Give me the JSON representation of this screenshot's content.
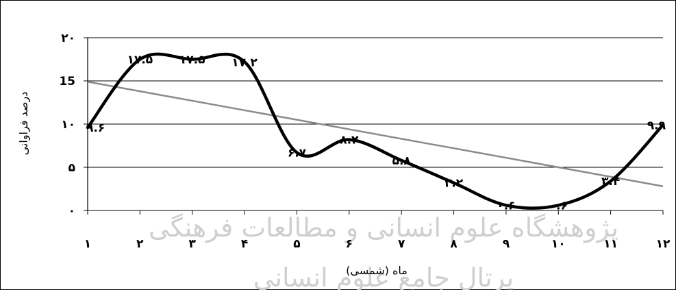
{
  "chart_data": {
    "type": "line",
    "x": [
      1,
      2,
      3,
      4,
      5,
      6,
      7,
      8,
      9,
      10,
      11,
      12
    ],
    "x_tick_labels": [
      "۱",
      "۲",
      "۳",
      "۴",
      "۵",
      "۶",
      "۷",
      "۸",
      "۹",
      "۱۰",
      "۱۱",
      "۱۲"
    ],
    "y_tick_values": [
      0,
      5,
      10,
      15,
      20
    ],
    "y_tick_labels": [
      "۰",
      "۵",
      "۱۰",
      "15",
      "۲۰"
    ],
    "ylim": [
      0,
      20
    ],
    "xlim": [
      1,
      12
    ],
    "xlabel": "ماه (شمسی)",
    "ylabel": "درصد فراوانی",
    "grid": "horizontal",
    "series": [
      {
        "values": [
          9.6,
          17.5,
          17.5,
          17.2,
          6.7,
          8.2,
          5.8,
          3.2,
          0.6,
          0.6,
          3.4,
          9.9
        ],
        "point_labels": [
          "۹.۶",
          "۱۷.۵",
          "۱۷.۵",
          "۱۷.۲",
          "۶.۷",
          "۸.۲",
          "۵.۸",
          "۳.۲",
          "۰.۶",
          "۰.۶",
          "۳.۴",
          "۹.۹"
        ],
        "style": "smooth",
        "color": "#000000"
      },
      {
        "values": [
          14.9,
          13.8,
          12.7,
          11.6,
          10.5,
          9.4,
          8.3,
          7.2,
          6.1,
          5.0,
          3.9,
          2.8
        ],
        "style": "trendline",
        "color": "#8a8a8a"
      }
    ]
  },
  "watermark": {
    "line1": "پژوهشگاه علوم انسانی و مطالعات فرهنگی",
    "line2": "پرتال جامع علوم انسانی"
  }
}
